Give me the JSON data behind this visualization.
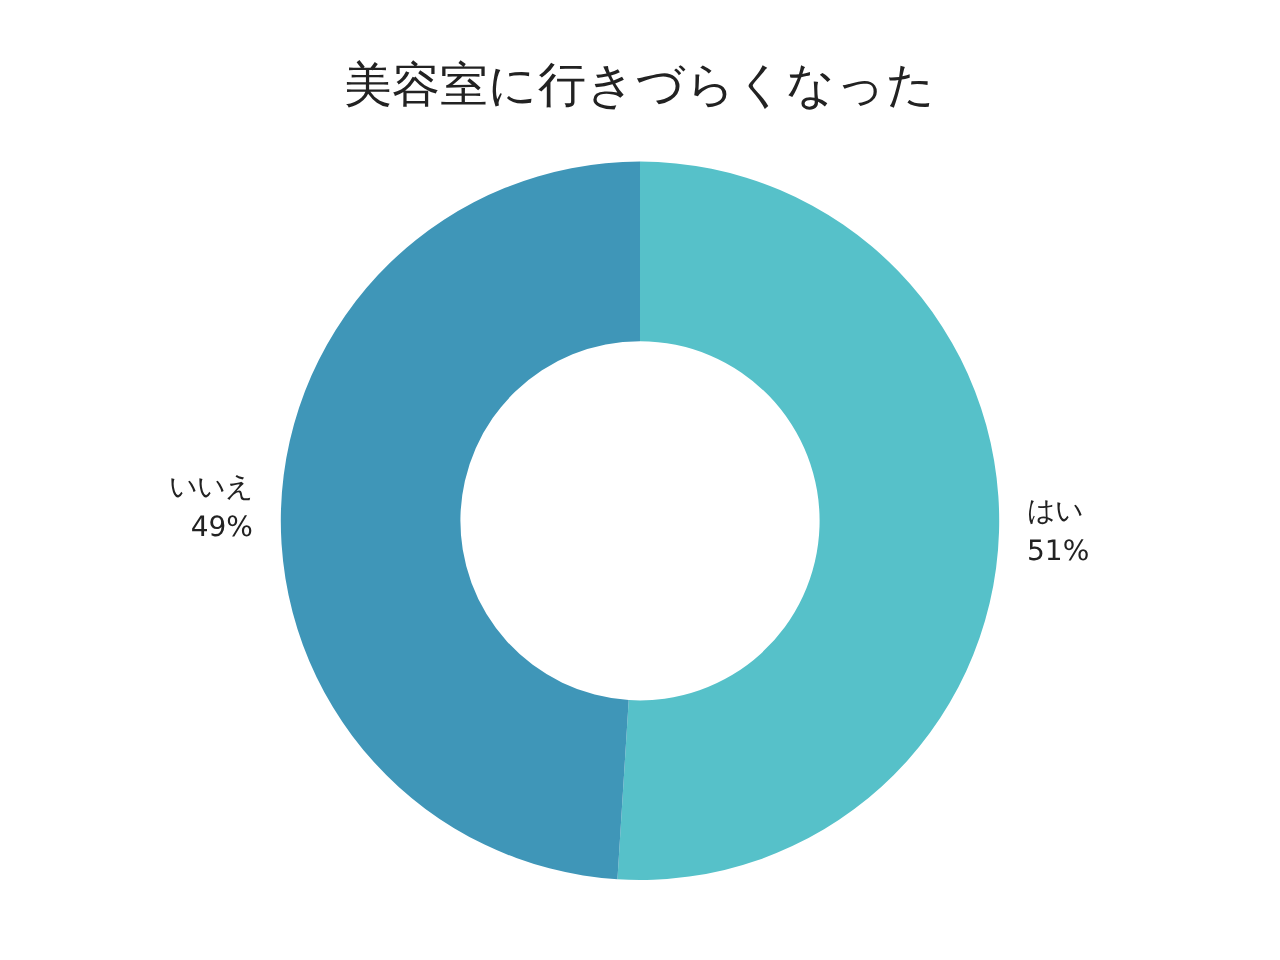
{
  "chart_data": {
    "type": "donut",
    "title": "美容室に行きづらくなった",
    "categories": [
      "はい",
      "いいえ"
    ],
    "values": [
      51,
      49
    ],
    "value_labels": [
      "51%",
      "49%"
    ],
    "colors": [
      "#56c1c9",
      "#3f96b8"
    ]
  }
}
